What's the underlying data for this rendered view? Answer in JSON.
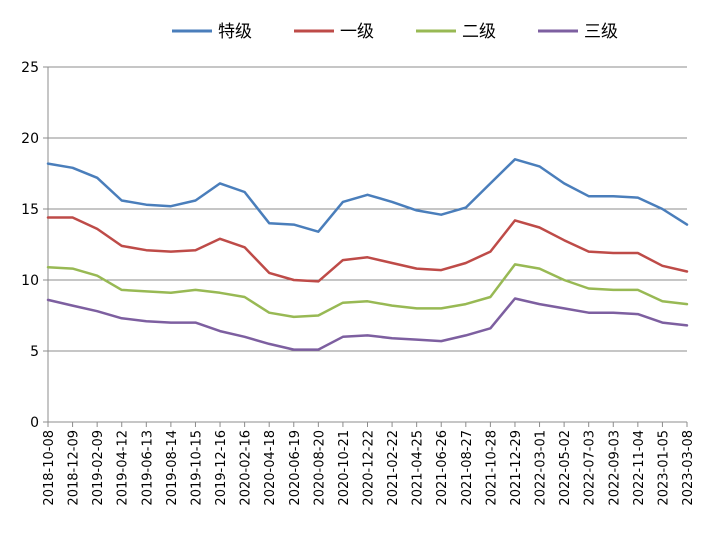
{
  "chart_data": {
    "type": "line",
    "ylim": [
      0,
      25
    ],
    "yticks": [
      0,
      5,
      10,
      15,
      20,
      25
    ],
    "grid": true,
    "legend_position": "top",
    "x_tick_labels": [
      "2018-10-08",
      "2018-12-09",
      "2019-02-09",
      "2019-04-12",
      "2019-06-13",
      "2019-08-14",
      "2019-10-15",
      "2019-12-16",
      "2020-02-16",
      "2020-04-18",
      "2020-06-19",
      "2020-08-20",
      "2020-10-21",
      "2020-12-22",
      "2021-02-22",
      "2021-04-25",
      "2021-06-26",
      "2021-08-27",
      "2021-10-28",
      "2021-12-29",
      "2022-03-01",
      "2022-05-02",
      "2022-07-03",
      "2022-09-03",
      "2022-11-04",
      "2023-01-05",
      "2023-03-08"
    ],
    "x": [
      "2018-10-08",
      "2018-12-09",
      "2019-02-09",
      "2019-04-12",
      "2019-06-13",
      "2019-08-14",
      "2019-10-15",
      "2019-12-16",
      "2020-02-16",
      "2020-04-18",
      "2020-06-19",
      "2020-08-20",
      "2020-10-21",
      "2020-12-22",
      "2021-02-22",
      "2021-04-25",
      "2021-06-26",
      "2021-08-27",
      "2021-10-28",
      "2021-12-29",
      "2022-03-01",
      "2022-05-02",
      "2022-07-03",
      "2022-09-03",
      "2022-11-04",
      "2023-01-05",
      "2023-03-08"
    ],
    "series": [
      {
        "name": "特级",
        "color": "#4a7ebb",
        "values": [
          18.2,
          17.9,
          17.2,
          15.6,
          15.3,
          15.2,
          15.6,
          16.8,
          16.2,
          14.0,
          13.9,
          13.4,
          15.5,
          16.0,
          15.5,
          14.9,
          14.6,
          15.1,
          16.8,
          18.5,
          18.0,
          16.8,
          15.9,
          15.9,
          15.8,
          15.0,
          13.9
        ]
      },
      {
        "name": "一级",
        "color": "#be4b48",
        "values": [
          14.4,
          14.4,
          13.6,
          12.4,
          12.1,
          12.0,
          12.1,
          12.9,
          12.3,
          10.5,
          10.0,
          9.9,
          11.4,
          11.6,
          11.2,
          10.8,
          10.7,
          11.2,
          12.0,
          14.2,
          13.7,
          12.8,
          12.0,
          11.9,
          11.9,
          11.0,
          10.6
        ]
      },
      {
        "name": "二级",
        "color": "#98b954",
        "values": [
          10.9,
          10.8,
          10.3,
          9.3,
          9.2,
          9.1,
          9.3,
          9.1,
          8.8,
          7.7,
          7.4,
          7.5,
          8.4,
          8.5,
          8.2,
          8.0,
          8.0,
          8.3,
          8.8,
          11.1,
          10.8,
          10.0,
          9.4,
          9.3,
          9.3,
          8.5,
          8.3
        ]
      },
      {
        "name": "三级",
        "color": "#7d5fa0",
        "values": [
          8.6,
          8.2,
          7.8,
          7.3,
          7.1,
          7.0,
          7.0,
          6.4,
          6.0,
          5.5,
          5.1,
          5.1,
          6.0,
          6.1,
          5.9,
          5.8,
          5.7,
          6.1,
          6.6,
          8.7,
          8.3,
          8.0,
          7.7,
          7.7,
          7.6,
          7.0,
          6.8
        ]
      }
    ]
  }
}
